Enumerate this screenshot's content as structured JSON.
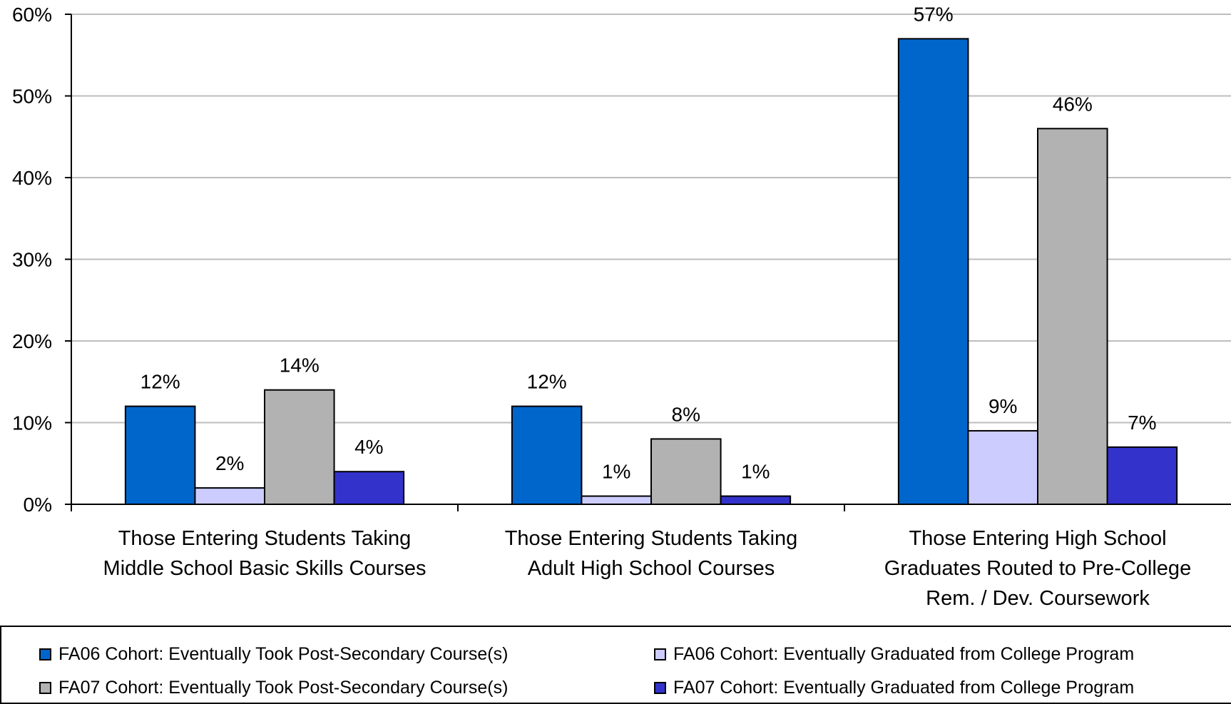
{
  "chart_data": {
    "type": "bar",
    "title": "",
    "xlabel": "",
    "ylabel": "",
    "ylim": [
      0,
      60
    ],
    "yticks": [
      "0%",
      "10%",
      "20%",
      "30%",
      "40%",
      "50%",
      "60%"
    ],
    "grid": true,
    "legend_position": "bottom",
    "categories": [
      [
        "Those Entering Students Taking",
        "Middle School Basic Skills Courses"
      ],
      [
        "Those Entering Students Taking",
        "Adult High School Courses"
      ],
      [
        "Those Entering High School",
        "Graduates Routed to Pre-College",
        "Rem. / Dev. Coursework"
      ]
    ],
    "series": [
      {
        "name": "FA06 Cohort: Eventually Took Post-Secondary Course(s)",
        "color": "#0066CC",
        "values": [
          12,
          12,
          57
        ],
        "labels": [
          "12%",
          "12%",
          "57%"
        ]
      },
      {
        "name": "FA06 Cohort: Eventually Graduated from College Program",
        "color": "#CCCCFF",
        "values": [
          2,
          1,
          9
        ],
        "labels": [
          "2%",
          "1%",
          "9%"
        ]
      },
      {
        "name": "FA07 Cohort: Eventually Took Post-Secondary Course(s)",
        "color": "#B2B2B2",
        "values": [
          14,
          8,
          46
        ],
        "labels": [
          "14%",
          "8%",
          "46%"
        ]
      },
      {
        "name": "FA07 Cohort: Eventually Graduated from College Program",
        "color": "#3333CC",
        "values": [
          4,
          1,
          7
        ],
        "labels": [
          "4%",
          "1%",
          "7%"
        ]
      }
    ]
  }
}
